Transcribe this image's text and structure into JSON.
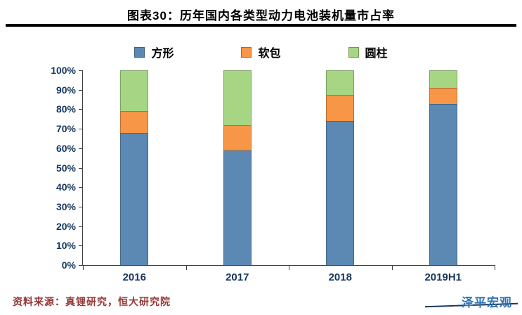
{
  "header": {
    "title": "图表30：历年国内各类型动力电池装机量市占率"
  },
  "footer": {
    "source": "资料来源：真锂研究，恒大研究院",
    "logo": "泽平宏观"
  },
  "chart_data": {
    "type": "bar",
    "subtype": "stacked-100-percent",
    "title": "图表30：历年国内各类型动力电池装机量市占率",
    "categories": [
      "2016",
      "2017",
      "2018",
      "2019H1"
    ],
    "series": [
      {
        "name": "方形",
        "color": "#5B89B4",
        "values": [
          68,
          59,
          74,
          82.5
        ]
      },
      {
        "name": "软包",
        "color": "#F79646",
        "values": [
          11,
          13,
          13.5,
          8.5
        ]
      },
      {
        "name": "圆柱",
        "color": "#A6D683",
        "values": [
          21,
          28,
          12.5,
          9
        ]
      }
    ],
    "xlabel": "",
    "ylabel": "",
    "ylim": [
      0,
      100
    ],
    "yticks": [
      "0%",
      "10%",
      "20%",
      "30%",
      "40%",
      "50%",
      "60%",
      "70%",
      "80%",
      "90%",
      "100%"
    ],
    "grid": false,
    "legend_position": "top"
  }
}
